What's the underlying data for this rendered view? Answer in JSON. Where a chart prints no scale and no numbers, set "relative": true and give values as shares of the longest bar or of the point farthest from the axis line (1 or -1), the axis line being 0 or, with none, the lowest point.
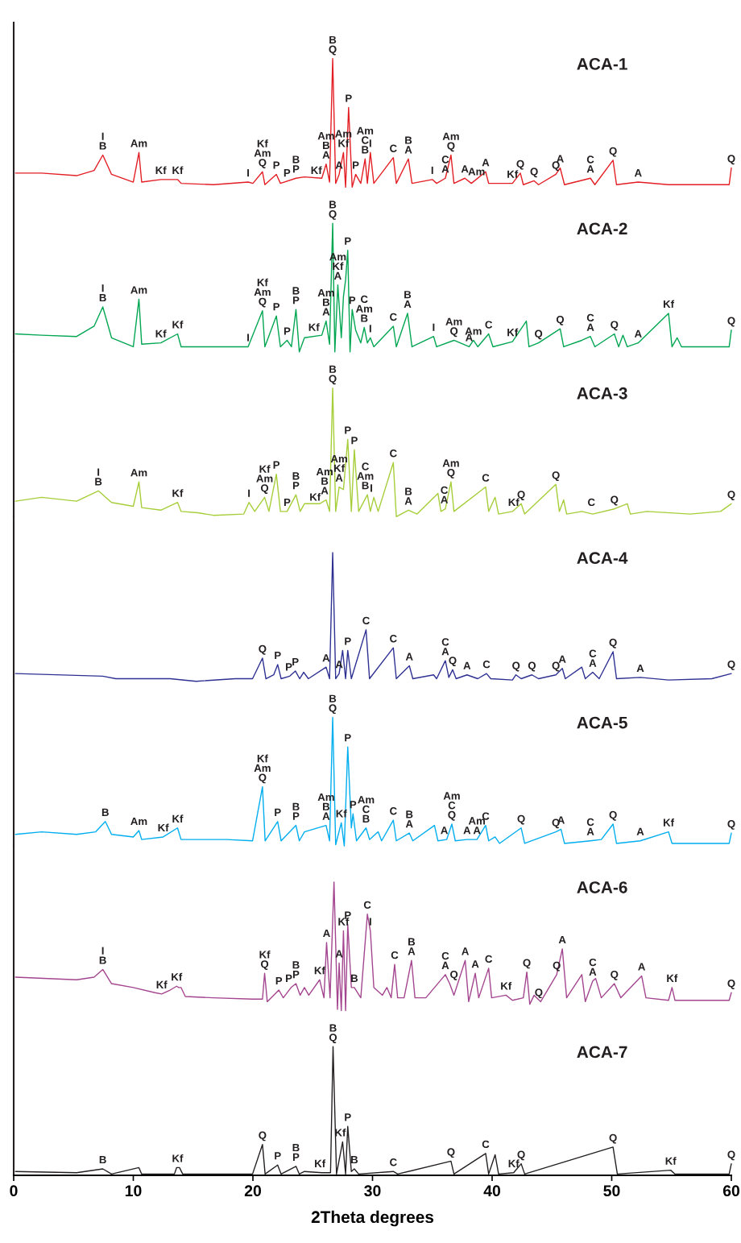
{
  "chart_data": [
    {
      "type": "line",
      "title": "ACA-1",
      "color": "#e31e24",
      "relative": true,
      "xlim": [
        0,
        60
      ],
      "xticks": [
        0,
        10,
        20,
        30,
        40,
        50,
        60
      ],
      "tick_labels": false,
      "x": [
        0.15,
        2.34,
        5.26,
        6.72,
        7.45,
        8.18,
        10.0,
        10.47,
        10.7,
        12.3,
        13.7,
        14.0,
        16.7,
        19.6,
        20.0,
        20.8,
        21.0,
        21.96,
        22.3,
        23.6,
        24.3,
        25.76,
        26.12,
        26.41,
        26.67,
        26.92,
        27.21,
        27.57,
        27.75,
        28.0,
        28.3,
        28.59,
        29.02,
        29.38,
        29.57,
        29.82,
        30.11,
        31.74,
        31.99,
        33.0,
        33.3,
        35.0,
        35.36,
        36.09,
        36.56,
        36.81,
        37.72,
        38.26,
        39.46,
        39.71,
        41.7,
        42.36,
        42.61,
        43.51,
        43.88,
        45.33,
        45.69,
        46.05,
        48.22,
        48.59,
        50.11,
        50.4,
        52.21,
        54.75,
        59.82,
        60.0
      ],
      "values": [
        0.11,
        0.11,
        0.09,
        0.13,
        0.25,
        0.1,
        0.04,
        0.27,
        0.04,
        0.06,
        0.06,
        0.03,
        0.02,
        0.04,
        0.03,
        0.12,
        0.02,
        0.1,
        0.03,
        0.07,
        0.08,
        0.07,
        0.18,
        0.04,
        1.0,
        0.03,
        0.1,
        0.27,
        0.0,
        0.62,
        0.0,
        0.1,
        0.03,
        0.22,
        0.03,
        0.27,
        0.03,
        0.23,
        0.03,
        0.22,
        0.03,
        0.06,
        0.03,
        0.07,
        0.25,
        0.03,
        0.07,
        0.03,
        0.12,
        0.03,
        0.03,
        0.11,
        0.02,
        0.05,
        0.02,
        0.1,
        0.15,
        0.02,
        0.07,
        0.02,
        0.21,
        0.02,
        0.04,
        0.02,
        0.02,
        0.15
      ],
      "annotations": [
        {
          "text": "I\nB",
          "x": 7.45,
          "y": 0.25
        },
        {
          "text": "Am",
          "x": 10.47,
          "y": 0.27
        },
        {
          "text": "Kf",
          "x": 12.3,
          "y": 0.06
        },
        {
          "text": "Kf",
          "x": 13.7,
          "y": 0.06
        },
        {
          "text": "I",
          "x": 19.6,
          "y": 0.04
        },
        {
          "text": "Kf\nAm\nQ",
          "x": 20.8,
          "y": 0.12
        },
        {
          "text": "P",
          "x": 21.96,
          "y": 0.1
        },
        {
          "text": "P",
          "x": 22.85,
          "y": 0.04
        },
        {
          "text": "B\nP",
          "x": 23.6,
          "y": 0.07
        },
        {
          "text": "Kf",
          "x": 25.3,
          "y": 0.06
        },
        {
          "text": "Am\nB\nA",
          "x": 26.12,
          "y": 0.18
        },
        {
          "text": "B\nQ",
          "x": 26.67,
          "y": 1.0
        },
        {
          "text": "A",
          "x": 27.21,
          "y": 0.1
        },
        {
          "text": "Am\nKf",
          "x": 27.57,
          "y": 0.27
        },
        {
          "text": "P",
          "x": 28.0,
          "y": 0.62
        },
        {
          "text": "P",
          "x": 28.59,
          "y": 0.1
        },
        {
          "text": "Am\nC\nB",
          "x": 29.38,
          "y": 0.22
        },
        {
          "text": "I",
          "x": 29.82,
          "y": 0.27
        },
        {
          "text": "C",
          "x": 31.74,
          "y": 0.23
        },
        {
          "text": "B\nA",
          "x": 33.0,
          "y": 0.22
        },
        {
          "text": "I",
          "x": 35.0,
          "y": 0.06
        },
        {
          "text": "C\nA",
          "x": 36.09,
          "y": 0.07
        },
        {
          "text": "Am\nQ",
          "x": 36.56,
          "y": 0.25
        },
        {
          "text": "A",
          "x": 37.72,
          "y": 0.07
        },
        {
          "text": "Am",
          "x": 38.7,
          "y": 0.05
        },
        {
          "text": "A",
          "x": 39.46,
          "y": 0.12
        },
        {
          "text": "Kf",
          "x": 41.7,
          "y": 0.03
        },
        {
          "text": "Q",
          "x": 42.36,
          "y": 0.11
        },
        {
          "text": "Q",
          "x": 43.51,
          "y": 0.05
        },
        {
          "text": "Q",
          "x": 45.33,
          "y": 0.1
        },
        {
          "text": "A",
          "x": 45.69,
          "y": 0.15
        },
        {
          "text": "C\nA",
          "x": 48.22,
          "y": 0.07
        },
        {
          "text": "Q",
          "x": 50.11,
          "y": 0.21
        },
        {
          "text": "A",
          "x": 52.21,
          "y": 0.04
        },
        {
          "text": "Q",
          "x": 60.0,
          "y": 0.15
        }
      ]
    },
    {
      "type": "line",
      "title": "ACA-2",
      "color": "#00a651",
      "relative": true,
      "xlim": [
        0,
        60
      ],
      "xticks": [
        0,
        10,
        20,
        30,
        40,
        50,
        60
      ],
      "tick_labels": false,
      "x": [
        0.15,
        2.34,
        5.26,
        6.72,
        7.45,
        8.18,
        10.0,
        10.47,
        10.7,
        12.3,
        13.7,
        14.0,
        16.7,
        19.6,
        20.8,
        21.0,
        21.96,
        22.3,
        22.86,
        23.22,
        23.6,
        23.88,
        24.31,
        25.76,
        26.12,
        26.41,
        26.67,
        26.85,
        27.1,
        27.39,
        27.57,
        27.75,
        27.93,
        28.12,
        28.3,
        28.59,
        29.02,
        29.31,
        29.57,
        29.82,
        30.11,
        31.74,
        31.99,
        32.93,
        33.3,
        35.11,
        35.36,
        36.81,
        38.08,
        38.44,
        38.8,
        39.71,
        40.07,
        41.7,
        42.86,
        43.08,
        43.88,
        45.69,
        45.98,
        47.5,
        48.22,
        48.59,
        50.22,
        50.58,
        50.94,
        51.3,
        52.21,
        54.75,
        55.04,
        55.47,
        55.83,
        59.82,
        60.0
      ],
      "values": [
        0.14,
        0.13,
        0.12,
        0.2,
        0.35,
        0.11,
        0.04,
        0.41,
        0.06,
        0.07,
        0.14,
        0.04,
        0.04,
        0.04,
        0.32,
        0.04,
        0.28,
        0.04,
        0.09,
        0.04,
        0.33,
        0.0,
        0.11,
        0.13,
        0.24,
        0.06,
        1.0,
        0.0,
        0.52,
        0.11,
        0.43,
        0.56,
        0.79,
        0.0,
        0.33,
        0.17,
        0.07,
        0.19,
        0.07,
        0.11,
        0.04,
        0.2,
        0.04,
        0.3,
        0.04,
        0.12,
        0.04,
        0.09,
        0.04,
        0.09,
        0.04,
        0.14,
        0.04,
        0.08,
        0.24,
        0.04,
        0.07,
        0.18,
        0.04,
        0.09,
        0.12,
        0.04,
        0.14,
        0.04,
        0.13,
        0.04,
        0.07,
        0.3,
        0.04,
        0.11,
        0.04,
        0.04,
        0.17
      ],
      "annotations": [
        {
          "text": "I\nB",
          "x": 7.45,
          "y": 0.35
        },
        {
          "text": "Am",
          "x": 10.47,
          "y": 0.41
        },
        {
          "text": "Kf",
          "x": 12.3,
          "y": 0.07
        },
        {
          "text": "Kf",
          "x": 13.7,
          "y": 0.14
        },
        {
          "text": "I",
          "x": 19.6,
          "y": 0.04
        },
        {
          "text": "Kf\nAm\nQ",
          "x": 20.8,
          "y": 0.32
        },
        {
          "text": "P",
          "x": 21.96,
          "y": 0.28
        },
        {
          "text": "P",
          "x": 22.86,
          "y": 0.09
        },
        {
          "text": "B\nP",
          "x": 23.6,
          "y": 0.33
        },
        {
          "text": "Kf",
          "x": 25.1,
          "y": 0.12
        },
        {
          "text": "Am\nB\nA",
          "x": 26.12,
          "y": 0.24
        },
        {
          "text": "B\nQ",
          "x": 26.67,
          "y": 1.0
        },
        {
          "text": "Am\nKf\nA",
          "x": 27.1,
          "y": 0.52
        },
        {
          "text": "P",
          "x": 27.93,
          "y": 0.79
        },
        {
          "text": "P",
          "x": 28.3,
          "y": 0.33
        },
        {
          "text": "C\nAm\nB",
          "x": 29.31,
          "y": 0.19
        },
        {
          "text": "I",
          "x": 29.82,
          "y": 0.11
        },
        {
          "text": "C",
          "x": 31.74,
          "y": 0.2
        },
        {
          "text": "B\nA",
          "x": 32.93,
          "y": 0.3
        },
        {
          "text": "I",
          "x": 35.11,
          "y": 0.12
        },
        {
          "text": "Am\nQ",
          "x": 36.81,
          "y": 0.09
        },
        {
          "text": "A",
          "x": 38.08,
          "y": 0.04
        },
        {
          "text": "Am",
          "x": 38.44,
          "y": 0.09
        },
        {
          "text": "C",
          "x": 39.71,
          "y": 0.14
        },
        {
          "text": "Kf",
          "x": 41.7,
          "y": 0.08
        },
        {
          "text": "Q",
          "x": 43.88,
          "y": 0.07
        },
        {
          "text": "Q",
          "x": 45.69,
          "y": 0.18
        },
        {
          "text": "C\nA",
          "x": 48.22,
          "y": 0.12
        },
        {
          "text": "Q",
          "x": 50.22,
          "y": 0.14
        },
        {
          "text": "A",
          "x": 52.21,
          "y": 0.07
        },
        {
          "text": "Kf",
          "x": 54.75,
          "y": 0.3
        },
        {
          "text": "Q",
          "x": 60.0,
          "y": 0.17
        }
      ]
    },
    {
      "type": "line",
      "title": "ACA-3",
      "color": "#a6ce39",
      "relative": true,
      "xlim": [
        0,
        60
      ],
      "xticks": [
        0,
        10,
        20,
        30,
        40,
        50,
        60
      ],
      "tick_labels": false,
      "x": [
        0.15,
        2.34,
        5.26,
        7.08,
        8.18,
        10.0,
        10.47,
        10.7,
        12.3,
        13.7,
        14.0,
        15.4,
        16.7,
        19.24,
        19.67,
        20.15,
        20.98,
        21.34,
        21.96,
        22.3,
        22.86,
        23.6,
        23.95,
        24.31,
        25.58,
        26.12,
        26.41,
        26.67,
        26.92,
        27.21,
        27.57,
        27.93,
        28.23,
        28.48,
        28.84,
        29.57,
        29.82,
        30.11,
        30.47,
        31.74,
        31.99,
        33.0,
        33.73,
        35.47,
        35.72,
        36.09,
        36.56,
        36.81,
        39.46,
        39.71,
        40.25,
        40.54,
        41.7,
        42.43,
        42.72,
        45.33,
        45.62,
        45.98,
        46.23,
        47.5,
        48.41,
        50.22,
        51.3,
        51.56,
        52.94,
        56.56,
        59.1,
        60.0
      ],
      "values": [
        0.12,
        0.15,
        0.12,
        0.2,
        0.11,
        0.08,
        0.27,
        0.07,
        0.05,
        0.11,
        0.04,
        0.03,
        0.01,
        0.02,
        0.11,
        0.04,
        0.15,
        0.04,
        0.33,
        0.04,
        0.04,
        0.17,
        0.04,
        0.1,
        0.1,
        0.13,
        0.04,
        1.0,
        0.04,
        0.23,
        0.21,
        0.6,
        0.04,
        0.52,
        0.04,
        0.17,
        0.04,
        0.15,
        0.04,
        0.42,
        0.0,
        0.05,
        0.02,
        0.18,
        0.04,
        0.06,
        0.27,
        0.04,
        0.23,
        0.04,
        0.15,
        0.02,
        0.04,
        0.1,
        0.02,
        0.25,
        0.04,
        0.13,
        0.02,
        0.04,
        0.02,
        0.06,
        0.1,
        0.02,
        0.04,
        0.02,
        0.04,
        0.1
      ],
      "annotations": [
        {
          "text": "I\nB",
          "x": 7.08,
          "y": 0.2
        },
        {
          "text": "Am",
          "x": 10.47,
          "y": 0.27
        },
        {
          "text": "Kf",
          "x": 13.7,
          "y": 0.11
        },
        {
          "text": "I",
          "x": 19.67,
          "y": 0.11
        },
        {
          "text": "Kf\nAm\nQ",
          "x": 20.98,
          "y": 0.15
        },
        {
          "text": "P",
          "x": 21.96,
          "y": 0.33
        },
        {
          "text": "P",
          "x": 22.86,
          "y": 0.04
        },
        {
          "text": "B\nP",
          "x": 23.6,
          "y": 0.17
        },
        {
          "text": "Kf",
          "x": 25.2,
          "y": 0.08
        },
        {
          "text": "Am\nB\nA",
          "x": 26.0,
          "y": 0.13
        },
        {
          "text": "B\nQ",
          "x": 26.67,
          "y": 1.0
        },
        {
          "text": "Am\nKf\nA",
          "x": 27.21,
          "y": 0.23
        },
        {
          "text": "P",
          "x": 27.93,
          "y": 0.6
        },
        {
          "text": "P",
          "x": 28.48,
          "y": 0.52
        },
        {
          "text": "C\nAm\nB",
          "x": 29.4,
          "y": 0.17
        },
        {
          "text": "I",
          "x": 29.9,
          "y": 0.15
        },
        {
          "text": "C",
          "x": 31.74,
          "y": 0.42
        },
        {
          "text": "B\nA",
          "x": 33.0,
          "y": 0.05
        },
        {
          "text": "C\nA",
          "x": 36.0,
          "y": 0.06
        },
        {
          "text": "Am\nQ",
          "x": 36.56,
          "y": 0.27
        },
        {
          "text": "C",
          "x": 39.46,
          "y": 0.23
        },
        {
          "text": "Kf",
          "x": 41.8,
          "y": 0.04
        },
        {
          "text": "Q",
          "x": 42.43,
          "y": 0.1
        },
        {
          "text": "Q",
          "x": 45.33,
          "y": 0.25
        },
        {
          "text": "C",
          "x": 48.3,
          "y": 0.04
        },
        {
          "text": "Q",
          "x": 50.22,
          "y": 0.06
        },
        {
          "text": "Q",
          "x": 60.0,
          "y": 0.1
        }
      ]
    },
    {
      "type": "line",
      "title": "ACA-4",
      "color": "#2e3192",
      "relative": true,
      "xlim": [
        0,
        60
      ],
      "xticks": [
        0,
        10,
        20,
        30,
        40,
        50,
        60
      ],
      "tick_labels": false,
      "x": [
        0.15,
        7.45,
        8.54,
        10.72,
        13.08,
        15.25,
        18.52,
        19.97,
        20.8,
        21.09,
        21.74,
        22.07,
        22.36,
        23.08,
        23.55,
        23.91,
        24.24,
        24.64,
        26.12,
        26.41,
        26.67,
        26.92,
        27.21,
        27.5,
        27.75,
        27.93,
        28.23,
        29.46,
        29.75,
        31.74,
        31.99,
        33.08,
        33.37,
        35.11,
        35.36,
        36.09,
        36.38,
        36.7,
        36.99,
        37.9,
        38.8,
        39.53,
        39.89,
        41.7,
        41.99,
        42.43,
        43.33,
        43.88,
        45.33,
        45.87,
        46.12,
        47.5,
        47.79,
        48.41,
        48.95,
        50.11,
        50.4,
        52.39,
        54.75,
        58.37,
        60.0
      ],
      "values": [
        0.06,
        0.04,
        0.02,
        0.02,
        0.02,
        0.0,
        0.02,
        0.02,
        0.18,
        0.02,
        0.05,
        0.13,
        0.02,
        0.04,
        0.08,
        0.02,
        0.07,
        0.02,
        0.11,
        0.02,
        1.0,
        0.02,
        0.06,
        0.24,
        0.02,
        0.24,
        0.02,
        0.4,
        0.02,
        0.26,
        0.02,
        0.12,
        0.02,
        0.05,
        0.02,
        0.16,
        0.03,
        0.09,
        0.02,
        0.05,
        0.02,
        0.06,
        0.02,
        0.01,
        0.05,
        0.02,
        0.05,
        0.02,
        0.05,
        0.1,
        0.02,
        0.11,
        0.02,
        0.07,
        0.02,
        0.23,
        0.02,
        0.03,
        0.01,
        0.02,
        0.06
      ],
      "annotations": [
        {
          "text": "Q",
          "x": 20.8,
          "y": 0.18
        },
        {
          "text": "P",
          "x": 22.07,
          "y": 0.13
        },
        {
          "text": "P",
          "x": 23.0,
          "y": 0.04
        },
        {
          "text": "P",
          "x": 23.55,
          "y": 0.08
        },
        {
          "text": "A",
          "x": 26.12,
          "y": 0.11
        },
        {
          "text": "A",
          "x": 27.21,
          "y": 0.06
        },
        {
          "text": "P",
          "x": 27.93,
          "y": 0.24
        },
        {
          "text": "C",
          "x": 29.46,
          "y": 0.4
        },
        {
          "text": "C",
          "x": 31.74,
          "y": 0.26
        },
        {
          "text": "A",
          "x": 33.08,
          "y": 0.12
        },
        {
          "text": "C\nA",
          "x": 36.09,
          "y": 0.16
        },
        {
          "text": "Q",
          "x": 36.7,
          "y": 0.09
        },
        {
          "text": "A",
          "x": 37.9,
          "y": 0.05
        },
        {
          "text": "C",
          "x": 39.53,
          "y": 0.06
        },
        {
          "text": "Q",
          "x": 42.0,
          "y": 0.05
        },
        {
          "text": "Q",
          "x": 43.33,
          "y": 0.05
        },
        {
          "text": "Q",
          "x": 45.33,
          "y": 0.05
        },
        {
          "text": "A",
          "x": 45.87,
          "y": 0.1
        },
        {
          "text": "C\nA",
          "x": 48.41,
          "y": 0.07
        },
        {
          "text": "Q",
          "x": 50.11,
          "y": 0.23
        },
        {
          "text": "A",
          "x": 52.39,
          "y": 0.03
        },
        {
          "text": "Q",
          "x": 60.0,
          "y": 0.06
        }
      ]
    },
    {
      "type": "line",
      "title": "ACA-5",
      "color": "#00aeef",
      "relative": true,
      "xlim": [
        0,
        60
      ],
      "xticks": [
        0,
        10,
        20,
        30,
        40,
        50,
        60
      ],
      "tick_labels": false,
      "x": [
        0.15,
        2.34,
        5.26,
        6.86,
        7.66,
        8.18,
        10.0,
        10.47,
        10.7,
        12.5,
        13.7,
        13.99,
        17.79,
        19.97,
        20.8,
        21.02,
        22.07,
        22.36,
        23.6,
        23.88,
        24.31,
        26.12,
        26.41,
        26.67,
        26.92,
        27.39,
        27.64,
        27.93,
        28.23,
        28.37,
        28.66,
        29.46,
        29.75,
        30.47,
        30.76,
        31.74,
        31.99,
        33.08,
        33.37,
        35.18,
        35.47,
        36.2,
        36.63,
        36.92,
        37.9,
        38.73,
        39.46,
        39.71,
        40.25,
        40.62,
        42.43,
        42.72,
        45.33,
        45.76,
        46.05,
        48.22,
        49.13,
        50.11,
        50.4,
        52.39,
        54.75,
        55.04,
        59.82,
        60.0
      ],
      "values": [
        0.09,
        0.11,
        0.09,
        0.11,
        0.19,
        0.09,
        0.07,
        0.12,
        0.05,
        0.07,
        0.14,
        0.05,
        0.05,
        0.04,
        0.46,
        0.04,
        0.19,
        0.04,
        0.16,
        0.04,
        0.11,
        0.16,
        0.04,
        1.0,
        0.01,
        0.18,
        0.0,
        0.77,
        0.14,
        0.25,
        0.04,
        0.14,
        0.05,
        0.11,
        0.04,
        0.2,
        0.04,
        0.1,
        0.04,
        0.16,
        0.04,
        0.05,
        0.17,
        0.04,
        0.05,
        0.05,
        0.16,
        0.04,
        0.07,
        0.02,
        0.14,
        0.02,
        0.11,
        0.13,
        0.02,
        0.04,
        0.05,
        0.17,
        0.02,
        0.04,
        0.11,
        0.02,
        0.02,
        0.1
      ],
      "annotations": [
        {
          "text": "B",
          "x": 7.66,
          "y": 0.19
        },
        {
          "text": "Am",
          "x": 10.47,
          "y": 0.12
        },
        {
          "text": "Kf",
          "x": 12.5,
          "y": 0.07
        },
        {
          "text": "Kf",
          "x": 13.7,
          "y": 0.14
        },
        {
          "text": "Kf\nAm\nQ",
          "x": 20.8,
          "y": 0.46
        },
        {
          "text": "P",
          "x": 22.07,
          "y": 0.19
        },
        {
          "text": "B\nP",
          "x": 23.6,
          "y": 0.16
        },
        {
          "text": "Am\nB\nA",
          "x": 26.12,
          "y": 0.16
        },
        {
          "text": "B\nQ",
          "x": 26.67,
          "y": 1.0
        },
        {
          "text": "Kf",
          "x": 27.39,
          "y": 0.18
        },
        {
          "text": "P",
          "x": 27.93,
          "y": 0.77
        },
        {
          "text": "P",
          "x": 28.37,
          "y": 0.25
        },
        {
          "text": "Am\nC\nB",
          "x": 29.46,
          "y": 0.14
        },
        {
          "text": "C",
          "x": 31.74,
          "y": 0.2
        },
        {
          "text": "B\nA",
          "x": 33.08,
          "y": 0.1
        },
        {
          "text": "A",
          "x": 36.0,
          "y": 0.05
        },
        {
          "text": "Am\nC\nQ",
          "x": 36.63,
          "y": 0.17
        },
        {
          "text": "A",
          "x": 37.9,
          "y": 0.05
        },
        {
          "text": "Am\nA",
          "x": 38.73,
          "y": 0.05
        },
        {
          "text": "C",
          "x": 39.46,
          "y": 0.16
        },
        {
          "text": "Q",
          "x": 42.43,
          "y": 0.14
        },
        {
          "text": "Q",
          "x": 45.33,
          "y": 0.11
        },
        {
          "text": "A",
          "x": 45.76,
          "y": 0.13
        },
        {
          "text": "C\nA",
          "x": 48.22,
          "y": 0.04
        },
        {
          "text": "Q",
          "x": 50.11,
          "y": 0.17
        },
        {
          "text": "A",
          "x": 52.39,
          "y": 0.04
        },
        {
          "text": "Kf",
          "x": 54.75,
          "y": 0.11
        },
        {
          "text": "Q",
          "x": 60.0,
          "y": 0.1
        }
      ]
    },
    {
      "type": "line",
      "title": "ACA-6",
      "color": "#a3458f",
      "relative": true,
      "xlim": [
        0,
        60
      ],
      "xticks": [
        0,
        10,
        20,
        30,
        40,
        50,
        60
      ],
      "tick_labels": false,
      "x": [
        0.15,
        5.26,
        6.72,
        7.45,
        8.18,
        10.0,
        11.81,
        12.37,
        13.08,
        13.62,
        13.8,
        13.99,
        14.35,
        16.7,
        19.97,
        20.8,
        20.98,
        21.2,
        22.17,
        22.54,
        23.19,
        23.6,
        23.95,
        24.31,
        24.67,
        25.58,
        25.94,
        26.16,
        26.45,
        26.78,
        27.07,
        27.21,
        27.39,
        27.57,
        27.75,
        27.93,
        28.23,
        28.48,
        29.02,
        29.57,
        29.82,
        30.11,
        30.83,
        31.2,
        31.56,
        31.85,
        32.1,
        32.64,
        33.26,
        33.55,
        34.46,
        36.09,
        36.45,
        36.81,
        37.75,
        38.04,
        38.59,
        38.88,
        39.71,
        39.96,
        41.16,
        41.7,
        42.61,
        42.9,
        43.15,
        43.51,
        44.06,
        45.4,
        45.87,
        46.23,
        47.5,
        47.79,
        48.41,
        48.66,
        49.13,
        50.22,
        50.76,
        52.5,
        52.86,
        54.75,
        55.04,
        55.29,
        57.65,
        59.82,
        60.0
      ],
      "values": [
        0.26,
        0.24,
        0.26,
        0.32,
        0.21,
        0.18,
        0.14,
        0.13,
        0.16,
        0.19,
        0.18,
        0.18,
        0.11,
        0.1,
        0.09,
        0.09,
        0.29,
        0.07,
        0.16,
        0.1,
        0.18,
        0.21,
        0.12,
        0.18,
        0.12,
        0.24,
        0.1,
        0.53,
        0.1,
        1.0,
        0.01,
        0.37,
        0.0,
        0.62,
        0.0,
        0.67,
        0.18,
        0.18,
        0.1,
        0.75,
        0.62,
        0.18,
        0.12,
        0.18,
        0.1,
        0.36,
        0.1,
        0.1,
        0.39,
        0.1,
        0.1,
        0.28,
        0.21,
        0.12,
        0.39,
        0.07,
        0.29,
        0.1,
        0.33,
        0.1,
        0.12,
        0.08,
        0.1,
        0.3,
        0.05,
        0.12,
        0.07,
        0.28,
        0.48,
        0.1,
        0.28,
        0.07,
        0.23,
        0.25,
        0.1,
        0.21,
        0.1,
        0.27,
        0.1,
        0.08,
        0.18,
        0.08,
        0.08,
        0.08,
        0.14
      ],
      "annotations": [
        {
          "text": "I\nB",
          "x": 7.45,
          "y": 0.32
        },
        {
          "text": "Kf",
          "x": 12.37,
          "y": 0.13
        },
        {
          "text": "Kf",
          "x": 13.62,
          "y": 0.19
        },
        {
          "text": "Kf\nQ",
          "x": 20.98,
          "y": 0.29
        },
        {
          "text": "P",
          "x": 22.17,
          "y": 0.16
        },
        {
          "text": "P",
          "x": 23.0,
          "y": 0.18
        },
        {
          "text": "B\nP",
          "x": 23.6,
          "y": 0.21
        },
        {
          "text": "Kf",
          "x": 25.58,
          "y": 0.24
        },
        {
          "text": "A",
          "x": 26.16,
          "y": 0.53
        },
        {
          "text": "A",
          "x": 27.21,
          "y": 0.37
        },
        {
          "text": "Kf",
          "x": 27.57,
          "y": 0.62
        },
        {
          "text": "P",
          "x": 27.93,
          "y": 0.67
        },
        {
          "text": "B",
          "x": 28.48,
          "y": 0.18
        },
        {
          "text": "C",
          "x": 29.57,
          "y": 0.75
        },
        {
          "text": "I",
          "x": 29.82,
          "y": 0.62
        },
        {
          "text": "C",
          "x": 31.85,
          "y": 0.36
        },
        {
          "text": "B\nA",
          "x": 33.26,
          "y": 0.39
        },
        {
          "text": "C\nA",
          "x": 36.09,
          "y": 0.28
        },
        {
          "text": "Q",
          "x": 36.81,
          "y": 0.21
        },
        {
          "text": "A",
          "x": 37.75,
          "y": 0.39
        },
        {
          "text": "A",
          "x": 38.59,
          "y": 0.29
        },
        {
          "text": "C",
          "x": 39.71,
          "y": 0.33
        },
        {
          "text": "Kf",
          "x": 41.16,
          "y": 0.12
        },
        {
          "text": "Q",
          "x": 42.9,
          "y": 0.3
        },
        {
          "text": "Q",
          "x": 43.9,
          "y": 0.07
        },
        {
          "text": "Q",
          "x": 45.4,
          "y": 0.28
        },
        {
          "text": "A",
          "x": 45.87,
          "y": 0.48
        },
        {
          "text": "C\nA",
          "x": 48.41,
          "y": 0.23
        },
        {
          "text": "Q",
          "x": 50.22,
          "y": 0.21
        },
        {
          "text": "A",
          "x": 52.5,
          "y": 0.27
        },
        {
          "text": "Kf",
          "x": 55.04,
          "y": 0.18
        },
        {
          "text": "Q",
          "x": 60.0,
          "y": 0.14
        }
      ]
    },
    {
      "type": "line",
      "title": "ACA-7",
      "color": "#231f20",
      "relative": true,
      "xlim": [
        0,
        60
      ],
      "tick_labels": "x",
      "xlabel": "2Theta degrees",
      "xticks": [
        0,
        10,
        20,
        30,
        40,
        50,
        60
      ],
      "x": [
        0.15,
        5.26,
        7.45,
        8.18,
        10.47,
        10.7,
        13.44,
        13.62,
        13.86,
        14.13,
        19.97,
        20.8,
        21.02,
        22.07,
        22.36,
        23.6,
        23.88,
        24.31,
        25.76,
        26.49,
        26.7,
        26.99,
        27.5,
        27.75,
        27.93,
        28.23,
        28.48,
        28.84,
        31.74,
        32.1,
        36.56,
        36.81,
        39.46,
        39.71,
        40.25,
        40.54,
        41.8,
        42.43,
        42.72,
        50.11,
        50.47,
        54.93,
        55.29,
        59.82,
        60.0
      ],
      "values": [
        0.03,
        0.02,
        0.05,
        0.01,
        0.06,
        0.01,
        0.01,
        0.06,
        0.06,
        0.01,
        0.01,
        0.24,
        0.01,
        0.08,
        0.01,
        0.07,
        0.01,
        0.03,
        0.02,
        0.02,
        1.0,
        0.01,
        0.26,
        0.01,
        0.38,
        0.03,
        0.05,
        0.01,
        0.03,
        0.01,
        0.11,
        0.01,
        0.17,
        0.01,
        0.16,
        0.01,
        0.02,
        0.09,
        0.01,
        0.22,
        0.01,
        0.04,
        0.01,
        0.01,
        0.09
      ],
      "annotations": [
        {
          "text": "B",
          "x": 7.45,
          "y": 0.05
        },
        {
          "text": "Kf",
          "x": 13.7,
          "y": 0.06
        },
        {
          "text": "Q",
          "x": 20.8,
          "y": 0.24
        },
        {
          "text": "P",
          "x": 22.07,
          "y": 0.08
        },
        {
          "text": "B\nP",
          "x": 23.6,
          "y": 0.07
        },
        {
          "text": "Kf",
          "x": 25.6,
          "y": 0.02
        },
        {
          "text": "B\nQ",
          "x": 26.7,
          "y": 1.0
        },
        {
          "text": "Kf",
          "x": 27.3,
          "y": 0.26
        },
        {
          "text": "P",
          "x": 27.93,
          "y": 0.38
        },
        {
          "text": "B",
          "x": 28.48,
          "y": 0.05
        },
        {
          "text": "C",
          "x": 31.74,
          "y": 0.03
        },
        {
          "text": "Q",
          "x": 36.56,
          "y": 0.11
        },
        {
          "text": "C",
          "x": 39.46,
          "y": 0.17
        },
        {
          "text": "Kf",
          "x": 41.8,
          "y": 0.02
        },
        {
          "text": "Q",
          "x": 42.43,
          "y": 0.09
        },
        {
          "text": "Q",
          "x": 50.11,
          "y": 0.22
        },
        {
          "text": "Kf",
          "x": 54.93,
          "y": 0.04
        },
        {
          "text": "Q",
          "x": 60.0,
          "y": 0.09
        }
      ]
    }
  ]
}
